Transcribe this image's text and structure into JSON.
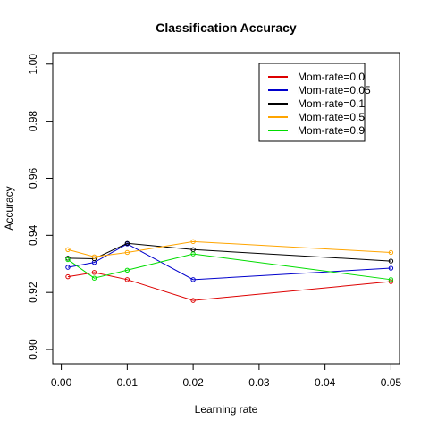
{
  "chart_data": {
    "type": "line",
    "title": "Classification Accuracy",
    "xlabel": "Learning rate",
    "ylabel": "Accuracy",
    "xlim": [
      0.0,
      0.05
    ],
    "ylim": [
      0.895,
      1.004
    ],
    "x_ticks": [
      0.0,
      0.01,
      0.02,
      0.03,
      0.04,
      0.05
    ],
    "x_tick_labels": [
      "0.00",
      "0.01",
      "0.02",
      "0.03",
      "0.04",
      "0.05"
    ],
    "y_ticks": [
      0.9,
      0.92,
      0.94,
      0.96,
      0.98,
      1.0
    ],
    "y_tick_labels": [
      "0.90",
      "0.92",
      "0.94",
      "0.96",
      "0.98",
      "1.00"
    ],
    "grid": false,
    "legend_position": "top-right",
    "x": [
      0.001,
      0.005,
      0.01,
      0.02,
      0.05
    ],
    "series": [
      {
        "name": "Mom-rate=0.0",
        "color": "#dd0000",
        "values": [
          0.9255,
          0.927,
          0.9245,
          0.9172,
          0.9238
        ]
      },
      {
        "name": "Mom-rate=0.05",
        "color": "#0000cc",
        "values": [
          0.9288,
          0.9305,
          0.937,
          0.9245,
          0.9285
        ]
      },
      {
        "name": "Mom-rate=0.1",
        "color": "#000000",
        "values": [
          0.932,
          0.9318,
          0.9372,
          0.935,
          0.931
        ]
      },
      {
        "name": "Mom-rate=0.5",
        "color": "#ffa500",
        "values": [
          0.935,
          0.9325,
          0.934,
          0.9378,
          0.934
        ]
      },
      {
        "name": "Mom-rate=0.9",
        "color": "#00dd00",
        "values": [
          0.9315,
          0.925,
          0.9278,
          0.9335,
          0.9245
        ]
      }
    ]
  }
}
